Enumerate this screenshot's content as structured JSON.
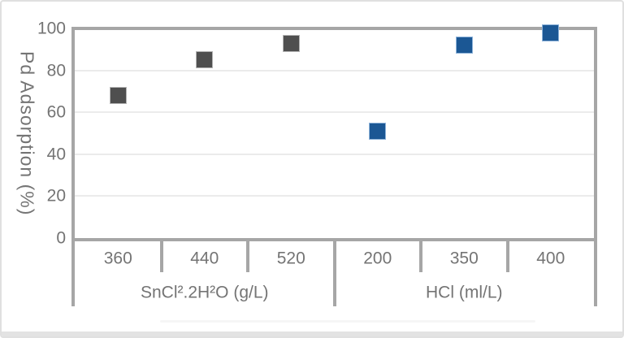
{
  "chart_data": {
    "type": "scatter",
    "title": "",
    "ylabel": "Pd Adsorption (%)",
    "xlabel": "",
    "ylim": [
      0,
      100
    ],
    "y_ticks": [
      0,
      20,
      40,
      60,
      80,
      100
    ],
    "grid": true,
    "legend": false,
    "marker": "square",
    "axis_color": "#a6a6a6",
    "gridline_color": "#ebebeb",
    "text_color": "#747474",
    "groups": [
      {
        "label": "SnCl².2H²O (g/L)",
        "color": "#4f4f4f",
        "marker_edge": "#b3b3b3",
        "categories": [
          "360",
          "440",
          "520"
        ],
        "values": [
          68,
          85,
          93
        ]
      },
      {
        "label": "HCl (ml/L)",
        "color": "#1b5794",
        "marker_edge": "#8cb2d9",
        "categories": [
          "200",
          "350",
          "400"
        ],
        "values": [
          51,
          92,
          98
        ]
      }
    ]
  }
}
